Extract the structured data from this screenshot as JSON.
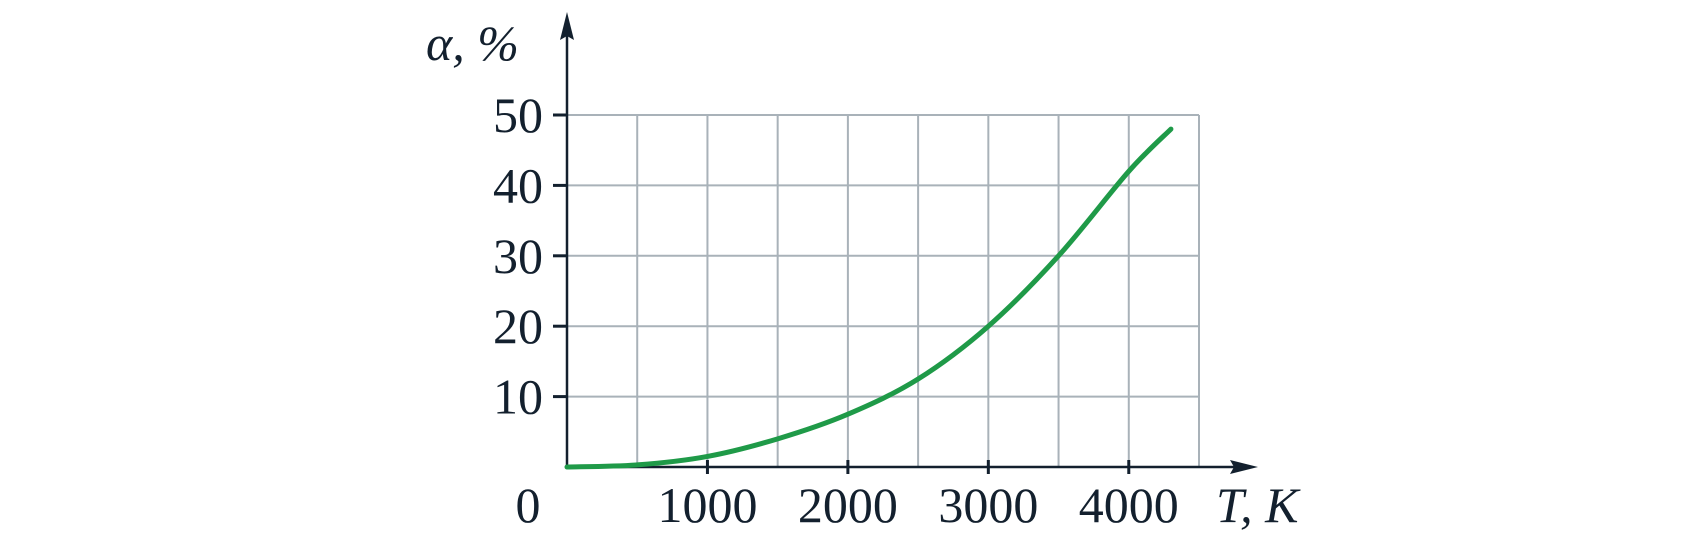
{
  "chart_data": {
    "type": "line",
    "xlabel": "T, K",
    "ylabel": "α, %",
    "origin": 0,
    "x": [
      0,
      500,
      1000,
      1500,
      2000,
      2500,
      3000,
      3500,
      4000,
      4300
    ],
    "series": [
      {
        "color": "#1f9a48",
        "values": [
          0,
          0.3,
          1.5,
          4,
          7.5,
          12.5,
          20,
          30,
          42,
          48
        ]
      }
    ],
    "xlim": [
      0,
      4500
    ],
    "ylim": [
      0,
      50
    ],
    "xticks": [
      1000,
      2000,
      3000,
      4000
    ],
    "xgrid": [
      500,
      1000,
      1500,
      2000,
      2500,
      3000,
      3500,
      4000,
      4500
    ],
    "yticks": [
      10,
      20,
      30,
      40,
      50
    ],
    "grid": true
  }
}
